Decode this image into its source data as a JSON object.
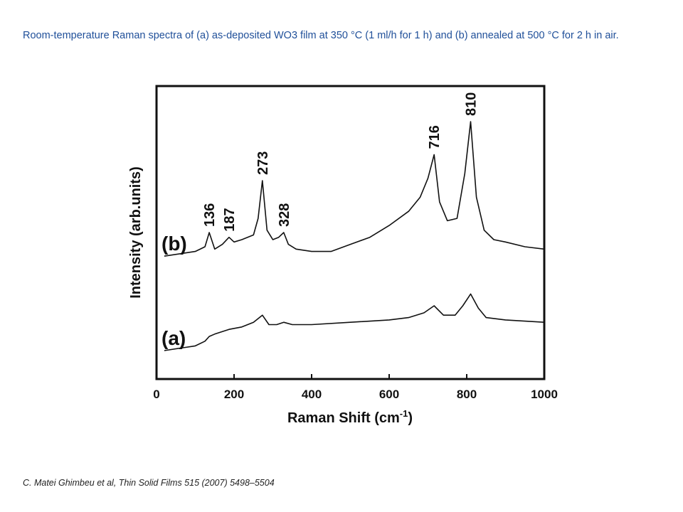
{
  "caption": "Room-temperature Raman spectra of (a) as-deposited WO3 film at 350 °C (1 ml/h for 1 h) and (b) annealed at 500 °C for 2 h in air.",
  "citation": "C. Matei Ghimbeu et al,  Thin Solid Films 515 (2007) 5498–5504",
  "chart_data": {
    "type": "line",
    "title": "",
    "xlabel": "Raman Shift (cm",
    "xlabel_sup": "-1",
    "xlabel_end": ")",
    "ylabel": "Intensity (arb.units)",
    "xlim": [
      0,
      1000
    ],
    "ylim": [
      0,
      1
    ],
    "x_ticks": [
      0,
      200,
      400,
      600,
      800,
      1000
    ],
    "y_ticks_shown": false,
    "grid": false,
    "legend": "none",
    "series": [
      {
        "name": "(a)",
        "x": [
          20,
          100,
          125,
          136,
          150,
          187,
          220,
          250,
          273,
          290,
          310,
          328,
          350,
          400,
          500,
          600,
          650,
          690,
          716,
          740,
          770,
          790,
          810,
          830,
          850,
          900,
          1000
        ],
        "y": [
          0.03,
          0.05,
          0.07,
          0.09,
          0.1,
          0.12,
          0.13,
          0.15,
          0.18,
          0.14,
          0.14,
          0.15,
          0.14,
          0.14,
          0.15,
          0.16,
          0.17,
          0.19,
          0.22,
          0.18,
          0.18,
          0.22,
          0.27,
          0.21,
          0.17,
          0.16,
          0.15
        ]
      },
      {
        "name": "(b)",
        "x": [
          20,
          100,
          125,
          136,
          150,
          170,
          187,
          200,
          220,
          250,
          262,
          273,
          285,
          300,
          315,
          328,
          340,
          360,
          400,
          450,
          500,
          550,
          600,
          650,
          680,
          700,
          716,
          730,
          750,
          775,
          795,
          810,
          825,
          845,
          870,
          900,
          950,
          1000
        ],
        "y": [
          0.43,
          0.45,
          0.47,
          0.53,
          0.46,
          0.48,
          0.51,
          0.49,
          0.5,
          0.52,
          0.59,
          0.75,
          0.54,
          0.5,
          0.51,
          0.53,
          0.48,
          0.46,
          0.45,
          0.45,
          0.48,
          0.51,
          0.56,
          0.62,
          0.68,
          0.76,
          0.86,
          0.66,
          0.58,
          0.59,
          0.78,
          1.0,
          0.68,
          0.54,
          0.5,
          0.49,
          0.47,
          0.46
        ]
      }
    ],
    "annotations": [
      {
        "text": "136",
        "x": 136
      },
      {
        "text": "187",
        "x": 187
      },
      {
        "text": "273",
        "x": 273
      },
      {
        "text": "328",
        "x": 328
      },
      {
        "text": "716",
        "x": 716
      },
      {
        "text": "810",
        "x": 810
      }
    ]
  }
}
